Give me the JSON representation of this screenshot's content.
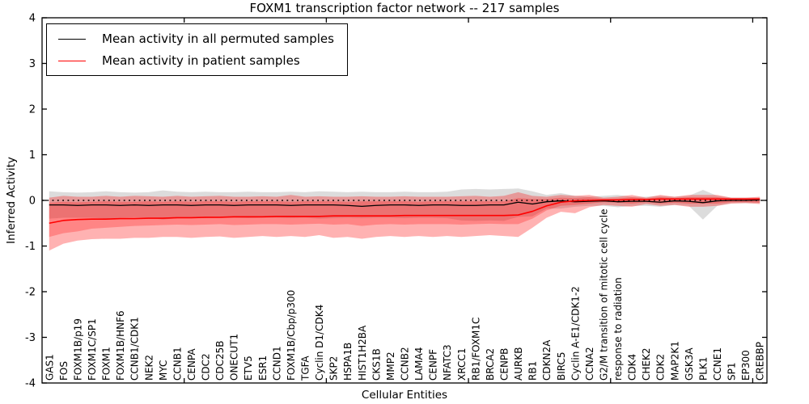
{
  "title": "FOXM1 transcription factor network -- 217 samples",
  "axes": {
    "ylabel": "Inferred Activity",
    "xlabel": "Cellular Entities"
  },
  "legend": {
    "items": [
      {
        "label": "Mean activity in all permuted samples",
        "color": "#000000",
        "thickness": 1.3
      },
      {
        "label": "Mean activity in patient samples",
        "color": "#ff0000",
        "thickness": 1.6
      }
    ]
  },
  "chart_data": {
    "type": "line",
    "title": "FOXM1 transcription factor network -- 217 samples",
    "xlabel": "Cellular Entities",
    "ylabel": "Inferred Activity",
    "ylim": [
      -4,
      4
    ],
    "y_ticks": [
      4,
      3,
      2,
      1,
      0,
      -1,
      -2,
      -3,
      -4
    ],
    "x_major_ticks": [
      10,
      20,
      30,
      40,
      50
    ],
    "grid": false,
    "legend_position": "upper-left",
    "zero_line": {
      "value": 0,
      "style": "dotted",
      "color": "#000000"
    },
    "categories": [
      "GAS1",
      "FOS",
      "FOXM1B/p19",
      "FOXM1C/SP1",
      "FOXM1",
      "FOXM1B/HNF6",
      "CCNB1/CDK1",
      "NEK2",
      "MYC",
      "CCNB1",
      "CENPA",
      "CDC2",
      "CDC25B",
      "ONECUT1",
      "ETV5",
      "ESR1",
      "CCND1",
      "FOXM1B/Cbp/p300",
      "TGFA",
      "Cyclin D1/CDK4",
      "SKP2",
      "HSPA1B",
      "HIST1H2BA",
      "CKS1B",
      "MMP2",
      "CCNB2",
      "LAMA4",
      "CENPF",
      "NFATC3",
      "XRCC1",
      "RB1/FOXM1C",
      "BRCA2",
      "CENPB",
      "AURKB",
      "RB1",
      "CDKN2A",
      "BIRC5",
      "Cyclin A-E1/CDK1-2",
      "CCNA2",
      "G2/M transition of mitotic cell cycle",
      "response to radiation",
      "CDK4",
      "CHEK2",
      "CDK2",
      "MAP2K1",
      "GSK3A",
      "PLK1",
      "CCNE1",
      "SP1",
      "EP300",
      "CREBBP"
    ],
    "series": [
      {
        "name": "Mean activity in all permuted samples",
        "color": "#000000",
        "width": 1.3,
        "values": [
          -0.1,
          -0.1,
          -0.11,
          -0.1,
          -0.1,
          -0.11,
          -0.1,
          -0.11,
          -0.1,
          -0.1,
          -0.11,
          -0.1,
          -0.1,
          -0.11,
          -0.1,
          -0.1,
          -0.1,
          -0.11,
          -0.1,
          -0.1,
          -0.1,
          -0.11,
          -0.13,
          -0.11,
          -0.1,
          -0.1,
          -0.11,
          -0.1,
          -0.1,
          -0.11,
          -0.11,
          -0.1,
          -0.1,
          -0.04,
          -0.08,
          -0.03,
          -0.01,
          -0.03,
          -0.02,
          -0.01,
          -0.03,
          -0.02,
          -0.02,
          -0.04,
          -0.01,
          -0.02,
          -0.05,
          -0.01,
          0.0,
          0.0,
          0.01
        ]
      },
      {
        "name": "Mean activity in patient samples",
        "color": "#ff0000",
        "width": 1.6,
        "values": [
          -0.5,
          -0.44,
          -0.42,
          -0.41,
          -0.41,
          -0.4,
          -0.4,
          -0.39,
          -0.39,
          -0.38,
          -0.38,
          -0.37,
          -0.37,
          -0.36,
          -0.36,
          -0.36,
          -0.35,
          -0.35,
          -0.35,
          -0.35,
          -0.34,
          -0.34,
          -0.34,
          -0.34,
          -0.34,
          -0.33,
          -0.33,
          -0.33,
          -0.33,
          -0.33,
          -0.33,
          -0.33,
          -0.33,
          -0.32,
          -0.24,
          -0.12,
          -0.04,
          -0.01,
          0.0,
          0.01,
          0.01,
          0.02,
          0.02,
          0.03,
          0.03,
          0.03,
          0.03,
          0.03,
          0.03,
          0.03,
          0.03
        ]
      }
    ],
    "bands": [
      {
        "name": "permuted-std-band",
        "color": "#808080",
        "opacity": 0.28,
        "upper": [
          0.2,
          0.18,
          0.17,
          0.18,
          0.2,
          0.18,
          0.17,
          0.18,
          0.22,
          0.19,
          0.18,
          0.19,
          0.18,
          0.18,
          0.19,
          0.18,
          0.18,
          0.19,
          0.18,
          0.2,
          0.19,
          0.18,
          0.19,
          0.18,
          0.18,
          0.19,
          0.18,
          0.18,
          0.19,
          0.24,
          0.25,
          0.24,
          0.25,
          0.26,
          0.2,
          0.12,
          0.16,
          0.1,
          0.08,
          0.1,
          0.12,
          0.08,
          0.08,
          0.1,
          0.08,
          0.1,
          0.23,
          0.1,
          0.06,
          0.06,
          0.06
        ],
        "lower": [
          -0.4,
          -0.38,
          -0.38,
          -0.38,
          -0.4,
          -0.38,
          -0.37,
          -0.38,
          -0.42,
          -0.39,
          -0.38,
          -0.39,
          -0.38,
          -0.38,
          -0.39,
          -0.38,
          -0.38,
          -0.39,
          -0.38,
          -0.4,
          -0.39,
          -0.38,
          -0.39,
          -0.38,
          -0.38,
          -0.39,
          -0.38,
          -0.38,
          -0.39,
          -0.44,
          -0.45,
          -0.44,
          -0.45,
          -0.36,
          -0.35,
          -0.18,
          -0.18,
          -0.14,
          -0.12,
          -0.12,
          -0.15,
          -0.12,
          -0.12,
          -0.14,
          -0.1,
          -0.12,
          -0.42,
          -0.12,
          -0.06,
          -0.06,
          -0.06
        ]
      },
      {
        "name": "patient-outer-band",
        "color": "#ff0000",
        "opacity": 0.3,
        "upper": [
          0.06,
          0.1,
          0.08,
          0.08,
          0.1,
          0.08,
          0.1,
          0.09,
          0.08,
          0.1,
          0.08,
          0.09,
          0.1,
          0.08,
          0.08,
          0.09,
          0.08,
          0.12,
          0.08,
          0.09,
          0.08,
          0.08,
          0.09,
          0.08,
          0.08,
          0.09,
          0.08,
          0.08,
          0.08,
          0.09,
          0.1,
          0.08,
          0.1,
          0.18,
          0.1,
          0.08,
          0.12,
          0.1,
          0.12,
          0.06,
          0.08,
          0.12,
          0.06,
          0.12,
          0.08,
          0.12,
          0.12,
          0.12,
          0.06,
          0.06,
          0.08
        ],
        "lower": [
          -1.1,
          -0.95,
          -0.88,
          -0.85,
          -0.84,
          -0.84,
          -0.82,
          -0.82,
          -0.8,
          -0.8,
          -0.82,
          -0.8,
          -0.79,
          -0.82,
          -0.8,
          -0.78,
          -0.8,
          -0.78,
          -0.8,
          -0.76,
          -0.82,
          -0.8,
          -0.84,
          -0.8,
          -0.78,
          -0.8,
          -0.78,
          -0.8,
          -0.78,
          -0.8,
          -0.78,
          -0.76,
          -0.78,
          -0.8,
          -0.6,
          -0.38,
          -0.25,
          -0.28,
          -0.15,
          -0.1,
          -0.12,
          -0.14,
          -0.08,
          -0.12,
          -0.1,
          -0.14,
          -0.14,
          -0.12,
          -0.07,
          -0.06,
          -0.08
        ]
      },
      {
        "name": "patient-inner-band",
        "color": "#ff0000",
        "opacity": 0.25,
        "upper": [
          -0.05,
          -0.03,
          -0.04,
          -0.03,
          -0.02,
          -0.03,
          -0.03,
          -0.02,
          -0.03,
          -0.02,
          -0.03,
          -0.02,
          -0.02,
          -0.03,
          -0.02,
          -0.02,
          -0.02,
          -0.03,
          -0.02,
          -0.02,
          -0.02,
          -0.03,
          -0.02,
          -0.02,
          -0.02,
          -0.02,
          -0.03,
          -0.02,
          -0.02,
          -0.02,
          -0.02,
          -0.02,
          -0.02,
          0.05,
          0.03,
          0.03,
          0.06,
          0.05,
          0.07,
          0.03,
          0.04,
          0.07,
          0.04,
          0.07,
          0.05,
          0.07,
          0.07,
          0.07,
          0.04,
          0.04,
          0.05
        ],
        "lower": [
          -0.8,
          -0.72,
          -0.68,
          -0.62,
          -0.6,
          -0.58,
          -0.56,
          -0.55,
          -0.54,
          -0.53,
          -0.54,
          -0.53,
          -0.52,
          -0.54,
          -0.53,
          -0.52,
          -0.52,
          -0.53,
          -0.52,
          -0.51,
          -0.53,
          -0.52,
          -0.56,
          -0.53,
          -0.52,
          -0.53,
          -0.52,
          -0.52,
          -0.52,
          -0.53,
          -0.52,
          -0.51,
          -0.52,
          -0.52,
          -0.4,
          -0.22,
          -0.12,
          -0.1,
          -0.07,
          -0.04,
          -0.05,
          -0.07,
          -0.04,
          -0.07,
          -0.05,
          -0.07,
          -0.07,
          -0.07,
          -0.04,
          -0.04,
          -0.05
        ]
      }
    ]
  }
}
